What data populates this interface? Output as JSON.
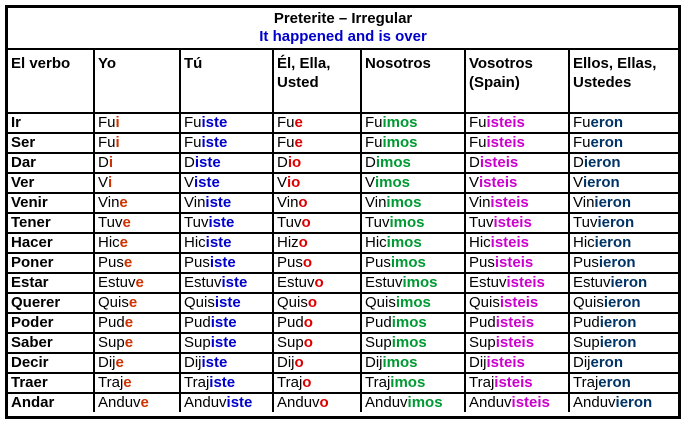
{
  "title": "Preterite – Irregular",
  "subtitle": "It happened and is over",
  "colors": {
    "yo": "#cc3300",
    "tu": "#0000cc",
    "el": "#dd0000",
    "nosotros": "#009933",
    "vosotros": "#cc00cc",
    "ellos": "#003366",
    "subtitle": "#0000cc"
  },
  "headers": [
    "El verbo",
    "Yo",
    "Tú",
    "Él, Ella, Usted",
    "Nosotros",
    "Vosotros (Spain)",
    "Ellos, Ellas, Ustedes"
  ],
  "rows": [
    {
      "verb": "Ir",
      "forms": [
        [
          "Fu",
          "i"
        ],
        [
          "Fu",
          "iste"
        ],
        [
          "Fu",
          "e"
        ],
        [
          "Fu",
          "imos"
        ],
        [
          "Fu",
          "isteis"
        ],
        [
          "Fu",
          "eron"
        ]
      ]
    },
    {
      "verb": "Ser",
      "forms": [
        [
          "Fu",
          "i"
        ],
        [
          "Fu",
          "iste"
        ],
        [
          "Fu",
          "e"
        ],
        [
          "Fu",
          "imos"
        ],
        [
          "Fu",
          "isteis"
        ],
        [
          "Fu",
          "eron"
        ]
      ]
    },
    {
      "verb": "Dar",
      "forms": [
        [
          "D",
          "i"
        ],
        [
          "D",
          "iste"
        ],
        [
          "D",
          "io"
        ],
        [
          "D",
          "imos"
        ],
        [
          "D",
          "isteis"
        ],
        [
          "D",
          "ieron"
        ]
      ]
    },
    {
      "verb": "Ver",
      "forms": [
        [
          "V",
          "i"
        ],
        [
          "V",
          "iste"
        ],
        [
          "V",
          "io"
        ],
        [
          "V",
          "imos"
        ],
        [
          "V",
          "isteis"
        ],
        [
          "V",
          "ieron"
        ]
      ]
    },
    {
      "verb": "Venir",
      "forms": [
        [
          "Vin",
          "e"
        ],
        [
          "Vin",
          "iste"
        ],
        [
          "Vin",
          "o"
        ],
        [
          "Vin",
          "imos"
        ],
        [
          "Vin",
          "isteis"
        ],
        [
          "Vin",
          "ieron"
        ]
      ]
    },
    {
      "verb": "Tener",
      "forms": [
        [
          "Tuv",
          "e"
        ],
        [
          "Tuv",
          "iste"
        ],
        [
          "Tuv",
          "o"
        ],
        [
          "Tuv",
          "imos"
        ],
        [
          "Tuv",
          "isteis"
        ],
        [
          "Tuv",
          "ieron"
        ]
      ]
    },
    {
      "verb": "Hacer",
      "forms": [
        [
          "Hic",
          "e"
        ],
        [
          "Hic",
          "iste"
        ],
        [
          "Hiz",
          "o"
        ],
        [
          "Hic",
          "imos"
        ],
        [
          "Hic",
          "isteis"
        ],
        [
          "Hic",
          "ieron"
        ]
      ]
    },
    {
      "verb": "Poner",
      "forms": [
        [
          "Pus",
          "e"
        ],
        [
          "Pus",
          "iste"
        ],
        [
          "Pus",
          "o"
        ],
        [
          "Pus",
          "imos"
        ],
        [
          "Pus",
          "isteis"
        ],
        [
          "Pus",
          "ieron"
        ]
      ]
    },
    {
      "verb": "Estar",
      "forms": [
        [
          "Estuv",
          "e"
        ],
        [
          "Estuv",
          "iste"
        ],
        [
          "Estuv",
          "o"
        ],
        [
          "Estuv",
          "imos"
        ],
        [
          "Estuv",
          "isteis"
        ],
        [
          "Estuv",
          "ieron"
        ]
      ]
    },
    {
      "verb": "Querer",
      "forms": [
        [
          "Quis",
          "e"
        ],
        [
          "Quis",
          "iste"
        ],
        [
          "Quis",
          "o"
        ],
        [
          "Quis",
          "imos"
        ],
        [
          "Quis",
          "isteis"
        ],
        [
          "Quis",
          "ieron"
        ]
      ]
    },
    {
      "verb": "Poder",
      "forms": [
        [
          "Pud",
          "e"
        ],
        [
          "Pud",
          "iste"
        ],
        [
          "Pud",
          "o"
        ],
        [
          "Pud",
          "imos"
        ],
        [
          "Pud",
          "isteis"
        ],
        [
          "Pud",
          "ieron"
        ]
      ]
    },
    {
      "verb": "Saber",
      "forms": [
        [
          "Sup",
          "e"
        ],
        [
          "Sup",
          "iste"
        ],
        [
          "Sup",
          "o"
        ],
        [
          "Sup",
          "imos"
        ],
        [
          "Sup",
          "isteis"
        ],
        [
          "Sup",
          "ieron"
        ]
      ]
    },
    {
      "verb": "Decir",
      "forms": [
        [
          "Dij",
          "e"
        ],
        [
          "Dij",
          "iste"
        ],
        [
          "Dij",
          "o"
        ],
        [
          "Dij",
          "imos"
        ],
        [
          "Dij",
          "isteis"
        ],
        [
          "Dij",
          "eron"
        ]
      ]
    },
    {
      "verb": "Traer",
      "forms": [
        [
          "Traj",
          "e"
        ],
        [
          "Traj",
          "iste"
        ],
        [
          "Traj",
          "o"
        ],
        [
          "Traj",
          "imos"
        ],
        [
          "Traj",
          "isteis"
        ],
        [
          "Traj",
          "eron"
        ]
      ]
    },
    {
      "verb": "Andar",
      "forms": [
        [
          "Anduv",
          "e"
        ],
        [
          "Anduv",
          "iste"
        ],
        [
          "Anduv",
          "o"
        ],
        [
          "Anduv",
          "imos"
        ],
        [
          "Anduv",
          "isteis"
        ],
        [
          "Anduv",
          "ieron"
        ]
      ]
    }
  ]
}
